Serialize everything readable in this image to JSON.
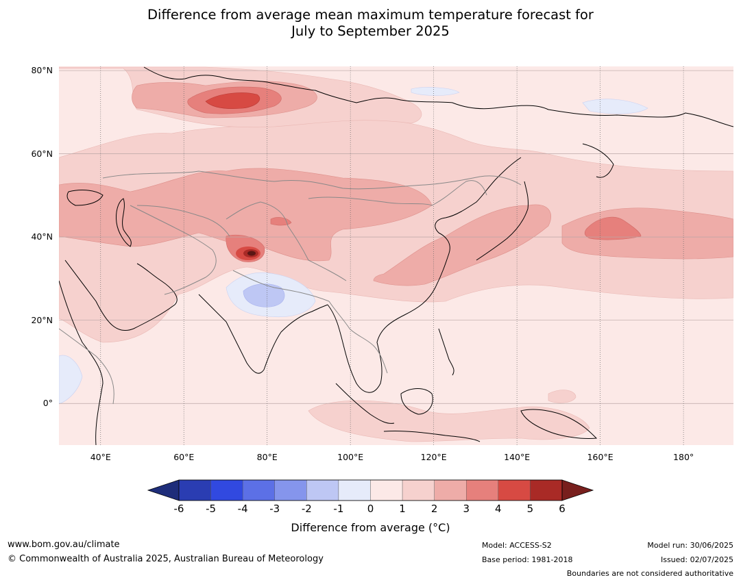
{
  "title_line1": "Difference from average mean maximum temperature forecast for",
  "title_line2": "July to September 2025",
  "map": {
    "lon_range": [
      30,
      192
    ],
    "lat_range": [
      -10,
      81
    ],
    "lat_ticks": [
      {
        "value": 80,
        "label": "80°N"
      },
      {
        "value": 60,
        "label": "60°N"
      },
      {
        "value": 40,
        "label": "40°N"
      },
      {
        "value": 20,
        "label": "20°N"
      },
      {
        "value": 0,
        "label": "0°"
      }
    ],
    "lon_ticks": [
      {
        "value": 40,
        "label": "40°E"
      },
      {
        "value": 60,
        "label": "60°E"
      },
      {
        "value": 80,
        "label": "80°E"
      },
      {
        "value": 100,
        "label": "100°E"
      },
      {
        "value": 120,
        "label": "120°E"
      },
      {
        "value": 140,
        "label": "140°E"
      },
      {
        "value": 160,
        "label": "160°E"
      },
      {
        "value": 180,
        "label": "180°"
      }
    ]
  },
  "colorbar": {
    "ticks": [
      "-6",
      "-5",
      "-4",
      "-3",
      "-2",
      "-1",
      "0",
      "1",
      "2",
      "3",
      "4",
      "5",
      "6"
    ],
    "colors": [
      "#1e2d7a",
      "#2a3db2",
      "#3149e0",
      "#5c70e6",
      "#8595ec",
      "#bec7f4",
      "#e6ebfa",
      "#fce9e7",
      "#f6d1ce",
      "#eeaca8",
      "#e6807c",
      "#d74a43",
      "#a92a26",
      "#781f1d"
    ],
    "label": "Difference from average (°C)"
  },
  "footer": {
    "website": "www.bom.gov.au/climate",
    "copyright": "© Commonwealth of Australia 2025, Australian Bureau of Meteorology",
    "model": "Model: ACCESS-S2",
    "base_period": "Base period: 1981-2018",
    "model_run": "Model run: 30/06/2025",
    "issued": "Issued: 02/07/2025",
    "disclaimer": "Boundaries are not considered authoritative"
  }
}
